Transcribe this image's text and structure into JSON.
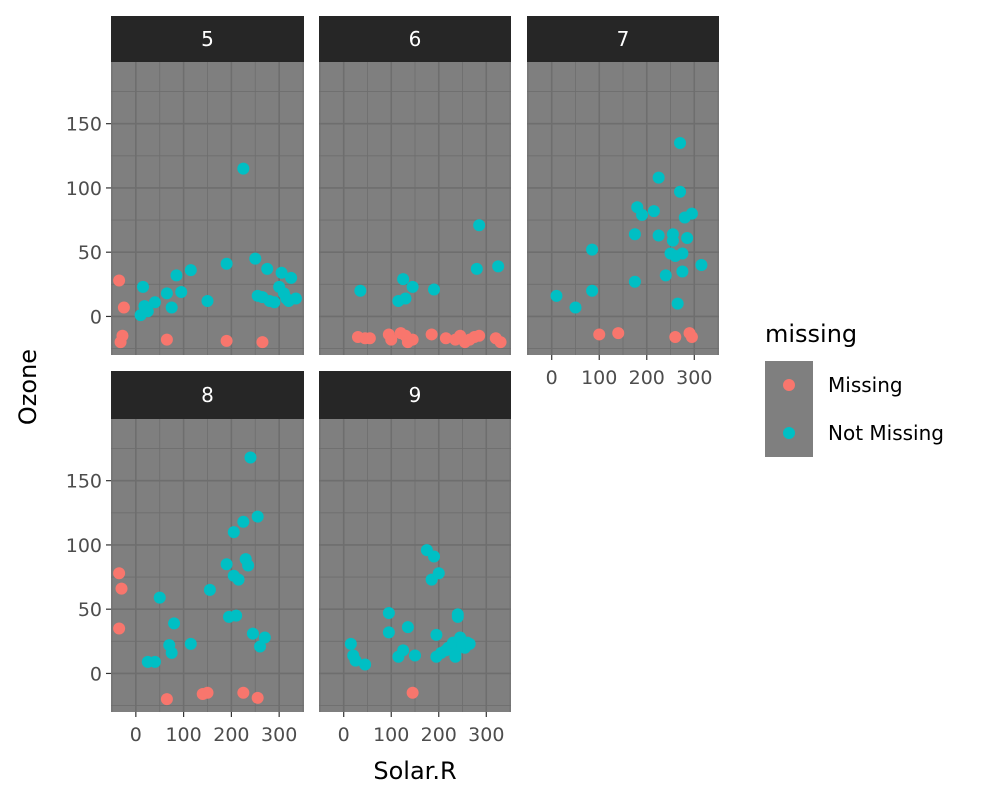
{
  "chart_data": {
    "type": "scatter",
    "facet_by": "Month",
    "xlabel": "Solar.R",
    "ylabel": "Ozone",
    "x_ticks": [
      0,
      100,
      200,
      300
    ],
    "x_tick_labels": [
      "0",
      "100",
      "200",
      "300"
    ],
    "y_ticks": [
      0,
      50,
      100,
      150
    ],
    "y_tick_labels": [
      "0",
      "50",
      "100",
      "150"
    ],
    "xlim": [
      -52,
      352
    ],
    "ylim": [
      -30,
      198
    ],
    "legend": {
      "title": "missing",
      "position": "right",
      "entries": [
        {
          "label": "Missing",
          "color": "#F8766D"
        },
        {
          "label": "Not Missing",
          "color": "#00BFC4"
        }
      ]
    },
    "colors": {
      "panel_background": "#7f7f7f",
      "grid": "#6e6e6e",
      "strip_background": "#262626",
      "missing": "#F8766D",
      "not_missing": "#00BFC4"
    },
    "panels": [
      {
        "label": "5",
        "missing": [
          [
            -35,
            28
          ],
          [
            -25,
            7
          ],
          [
            -28,
            -15
          ],
          [
            -32,
            -20
          ],
          [
            65,
            -18
          ],
          [
            190,
            -19
          ],
          [
            265,
            -20
          ]
        ],
        "not_missing": [
          [
            10,
            1
          ],
          [
            15,
            23
          ],
          [
            18,
            8
          ],
          [
            25,
            4
          ],
          [
            40,
            11
          ],
          [
            65,
            18
          ],
          [
            75,
            7
          ],
          [
            85,
            32
          ],
          [
            95,
            19
          ],
          [
            115,
            36
          ],
          [
            150,
            12
          ],
          [
            190,
            41
          ],
          [
            225,
            115
          ],
          [
            250,
            45
          ],
          [
            255,
            16
          ],
          [
            265,
            15
          ],
          [
            275,
            37
          ],
          [
            280,
            12
          ],
          [
            290,
            11
          ],
          [
            300,
            23
          ],
          [
            305,
            34
          ],
          [
            310,
            18
          ],
          [
            315,
            14
          ],
          [
            320,
            12
          ],
          [
            325,
            30
          ],
          [
            335,
            14
          ]
        ]
      },
      {
        "label": "6",
        "missing": [
          [
            30,
            -16
          ],
          [
            45,
            -17
          ],
          [
            55,
            -17
          ],
          [
            95,
            -14
          ],
          [
            100,
            -18
          ],
          [
            120,
            -13
          ],
          [
            130,
            -15
          ],
          [
            135,
            -20
          ],
          [
            145,
            -18
          ],
          [
            185,
            -14
          ],
          [
            215,
            -17
          ],
          [
            235,
            -18
          ],
          [
            245,
            -15
          ],
          [
            255,
            -20
          ],
          [
            265,
            -18
          ],
          [
            275,
            -16
          ],
          [
            285,
            -15
          ],
          [
            320,
            -17
          ],
          [
            330,
            -20
          ]
        ],
        "not_missing": [
          [
            35,
            20
          ],
          [
            115,
            12
          ],
          [
            125,
            29
          ],
          [
            130,
            14
          ],
          [
            145,
            23
          ],
          [
            190,
            21
          ],
          [
            280,
            37
          ],
          [
            285,
            71
          ],
          [
            325,
            39
          ]
        ]
      },
      {
        "label": "7",
        "missing": [
          [
            100,
            -14
          ],
          [
            140,
            -13
          ],
          [
            260,
            -16
          ],
          [
            290,
            -13
          ],
          [
            295,
            -16
          ]
        ],
        "not_missing": [
          [
            10,
            16
          ],
          [
            50,
            7
          ],
          [
            85,
            20
          ],
          [
            85,
            52
          ],
          [
            175,
            27
          ],
          [
            175,
            64
          ],
          [
            180,
            85
          ],
          [
            190,
            79
          ],
          [
            215,
            82
          ],
          [
            225,
            108
          ],
          [
            225,
            63
          ],
          [
            240,
            32
          ],
          [
            250,
            49
          ],
          [
            255,
            64
          ],
          [
            255,
            59
          ],
          [
            260,
            47
          ],
          [
            265,
            10
          ],
          [
            270,
            97
          ],
          [
            270,
            135
          ],
          [
            275,
            49
          ],
          [
            275,
            35
          ],
          [
            280,
            77
          ],
          [
            285,
            61
          ],
          [
            295,
            80
          ],
          [
            315,
            40
          ]
        ]
      },
      {
        "label": "8",
        "missing": [
          [
            -35,
            78
          ],
          [
            -30,
            66
          ],
          [
            -35,
            35
          ],
          [
            65,
            -20
          ],
          [
            140,
            -16
          ],
          [
            150,
            -15
          ],
          [
            225,
            -15
          ],
          [
            255,
            -19
          ]
        ],
        "not_missing": [
          [
            25,
            9
          ],
          [
            40,
            9
          ],
          [
            50,
            59
          ],
          [
            70,
            22
          ],
          [
            75,
            16
          ],
          [
            80,
            39
          ],
          [
            115,
            23
          ],
          [
            155,
            65
          ],
          [
            190,
            85
          ],
          [
            195,
            44
          ],
          [
            205,
            76
          ],
          [
            205,
            110
          ],
          [
            210,
            45
          ],
          [
            215,
            73
          ],
          [
            225,
            118
          ],
          [
            230,
            89
          ],
          [
            235,
            84
          ],
          [
            240,
            168
          ],
          [
            245,
            31
          ],
          [
            255,
            122
          ],
          [
            260,
            21
          ],
          [
            270,
            28
          ]
        ]
      },
      {
        "label": "9",
        "missing": [
          [
            145,
            -15
          ]
        ],
        "not_missing": [
          [
            15,
            23
          ],
          [
            20,
            14
          ],
          [
            25,
            10
          ],
          [
            45,
            7
          ],
          [
            95,
            32
          ],
          [
            95,
            47
          ],
          [
            115,
            13
          ],
          [
            125,
            18
          ],
          [
            135,
            36
          ],
          [
            150,
            14
          ],
          [
            175,
            96
          ],
          [
            185,
            73
          ],
          [
            190,
            91
          ],
          [
            195,
            13
          ],
          [
            195,
            30
          ],
          [
            200,
            78
          ],
          [
            205,
            16
          ],
          [
            215,
            18
          ],
          [
            220,
            20
          ],
          [
            225,
            21
          ],
          [
            230,
            24
          ],
          [
            235,
            16
          ],
          [
            235,
            13
          ],
          [
            240,
            46
          ],
          [
            240,
            44
          ],
          [
            245,
            28
          ],
          [
            250,
            22
          ],
          [
            255,
            20
          ],
          [
            260,
            24
          ],
          [
            265,
            23
          ]
        ]
      }
    ]
  }
}
